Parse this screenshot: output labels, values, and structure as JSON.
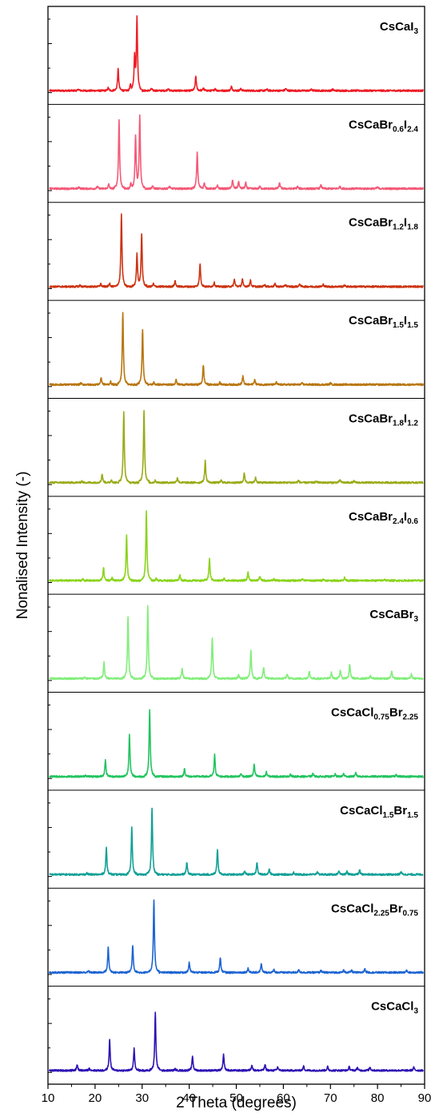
{
  "chart_data": {
    "type": "line",
    "xlabel": "2 Theta (degrees)",
    "ylabel": "Nonalised Intensity (-)",
    "xlim": [
      10,
      90
    ],
    "xticks": [
      10,
      20,
      30,
      40,
      50,
      60,
      70,
      80,
      90
    ],
    "grid": false,
    "legend": "per-panel label, top-right",
    "series": [
      {
        "label": [
          {
            "t": "CsCaI"
          },
          {
            "t": "3",
            "s": true
          }
        ],
        "color": "#ee1c25",
        "shift": 0.0,
        "peaks": [
          [
            16.5,
            0.02
          ],
          [
            22.8,
            0.04
          ],
          [
            24.9,
            0.3
          ],
          [
            27.5,
            0.08
          ],
          [
            28.4,
            0.45
          ],
          [
            28.9,
            1.0
          ],
          [
            32.0,
            0.03
          ],
          [
            35.5,
            0.03
          ],
          [
            41.4,
            0.2
          ],
          [
            43.0,
            0.04
          ],
          [
            45.5,
            0.03
          ],
          [
            49.0,
            0.06
          ],
          [
            51.0,
            0.03
          ],
          [
            56.5,
            0.02
          ],
          [
            60.5,
            0.03
          ],
          [
            66.0,
            0.02
          ],
          [
            70.5,
            0.02
          ]
        ]
      },
      {
        "label": [
          {
            "t": "CsCaBr"
          },
          {
            "t": "0.6",
            "s": true
          },
          {
            "t": "I"
          },
          {
            "t": "2.4",
            "s": true
          }
        ],
        "color": "#f35a78",
        "shift": 0.4,
        "peaks": [
          [
            16.6,
            0.02
          ],
          [
            20.5,
            0.03
          ],
          [
            22.9,
            0.06
          ],
          [
            25.1,
            0.95
          ],
          [
            27.6,
            0.07
          ],
          [
            28.6,
            0.72
          ],
          [
            29.5,
            1.0
          ],
          [
            32.2,
            0.04
          ],
          [
            35.8,
            0.03
          ],
          [
            41.7,
            0.5
          ],
          [
            43.2,
            0.08
          ],
          [
            46.0,
            0.04
          ],
          [
            49.2,
            0.12
          ],
          [
            50.5,
            0.1
          ],
          [
            52.0,
            0.08
          ],
          [
            55.0,
            0.03
          ],
          [
            59.2,
            0.08
          ],
          [
            63.0,
            0.03
          ],
          [
            68.0,
            0.05
          ],
          [
            72.0,
            0.03
          ],
          [
            80.0,
            0.02
          ]
        ]
      },
      {
        "label": [
          {
            "t": "CsCaBr"
          },
          {
            "t": "1.2",
            "s": true
          },
          {
            "t": "I"
          },
          {
            "t": "1.8",
            "s": true
          }
        ],
        "color": "#cc3311",
        "shift": 0.8,
        "peaks": [
          [
            16.8,
            0.02
          ],
          [
            21.2,
            0.04
          ],
          [
            23.1,
            0.05
          ],
          [
            25.6,
            1.0
          ],
          [
            28.9,
            0.45
          ],
          [
            29.9,
            0.72
          ],
          [
            32.4,
            0.04
          ],
          [
            37.0,
            0.08
          ],
          [
            42.3,
            0.32
          ],
          [
            45.3,
            0.06
          ],
          [
            49.6,
            0.1
          ],
          [
            51.3,
            0.1
          ],
          [
            53.0,
            0.09
          ],
          [
            56.0,
            0.03
          ],
          [
            58.2,
            0.04
          ],
          [
            60.5,
            0.03
          ],
          [
            63.5,
            0.04
          ],
          [
            68.5,
            0.03
          ],
          [
            73.0,
            0.02
          ]
        ]
      },
      {
        "label": [
          {
            "t": "CsCaBr"
          },
          {
            "t": "1.5",
            "s": true
          },
          {
            "t": "I"
          },
          {
            "t": "1.5",
            "s": true
          }
        ],
        "color": "#b8760f",
        "shift": 1.0,
        "peaks": [
          [
            17.0,
            0.02
          ],
          [
            21.3,
            0.1
          ],
          [
            23.3,
            0.04
          ],
          [
            25.9,
            1.0
          ],
          [
            30.1,
            0.77
          ],
          [
            32.5,
            0.03
          ],
          [
            37.2,
            0.07
          ],
          [
            43.0,
            0.27
          ],
          [
            46.5,
            0.03
          ],
          [
            51.4,
            0.12
          ],
          [
            53.9,
            0.07
          ],
          [
            58.5,
            0.03
          ],
          [
            64.0,
            0.02
          ],
          [
            70.0,
            0.02
          ]
        ]
      },
      {
        "label": [
          {
            "t": "CsCaBr"
          },
          {
            "t": "1.8",
            "s": true
          },
          {
            "t": "I"
          },
          {
            "t": "1.2",
            "s": true
          }
        ],
        "color": "#9aab18",
        "shift": 1.2,
        "peaks": [
          [
            17.2,
            0.02
          ],
          [
            21.5,
            0.12
          ],
          [
            23.5,
            0.04
          ],
          [
            26.1,
            0.98
          ],
          [
            30.4,
            1.0
          ],
          [
            32.8,
            0.03
          ],
          [
            37.5,
            0.07
          ],
          [
            43.4,
            0.3
          ],
          [
            46.8,
            0.03
          ],
          [
            51.7,
            0.13
          ],
          [
            54.1,
            0.07
          ],
          [
            63.2,
            0.03
          ],
          [
            67.0,
            0.02
          ],
          [
            72.0,
            0.04
          ],
          [
            75.0,
            0.02
          ]
        ]
      },
      {
        "label": [
          {
            "t": "CsCaBr"
          },
          {
            "t": "2.4",
            "s": true
          },
          {
            "t": "I"
          },
          {
            "t": "0.6",
            "s": true
          }
        ],
        "color": "#8ad41c",
        "shift": 1.6,
        "peaks": [
          [
            17.4,
            0.02
          ],
          [
            21.8,
            0.18
          ],
          [
            23.6,
            0.04
          ],
          [
            26.7,
            0.62
          ],
          [
            30.9,
            0.95
          ],
          [
            33.0,
            0.03
          ],
          [
            38.0,
            0.08
          ],
          [
            44.3,
            0.3
          ],
          [
            47.4,
            0.03
          ],
          [
            52.5,
            0.12
          ],
          [
            55.0,
            0.06
          ],
          [
            58.0,
            0.02
          ],
          [
            64.0,
            0.03
          ],
          [
            68.5,
            0.02
          ],
          [
            73.0,
            0.04
          ],
          [
            81.5,
            0.02
          ]
        ]
      },
      {
        "label": [
          {
            "t": "CsCaBr"
          },
          {
            "t": "3",
            "s": true
          }
        ],
        "color": "#82ee7a",
        "shift": 2.0,
        "peaks": [
          [
            17.8,
            0.02
          ],
          [
            21.9,
            0.22
          ],
          [
            27.0,
            0.85
          ],
          [
            31.2,
            1.0
          ],
          [
            38.5,
            0.14
          ],
          [
            44.9,
            0.57
          ],
          [
            50.5,
            0.05
          ],
          [
            53.1,
            0.38
          ],
          [
            55.8,
            0.16
          ],
          [
            60.8,
            0.06
          ],
          [
            65.5,
            0.1
          ],
          [
            70.2,
            0.08
          ],
          [
            72.1,
            0.12
          ],
          [
            74.1,
            0.2
          ],
          [
            78.5,
            0.04
          ],
          [
            83.0,
            0.11
          ],
          [
            87.2,
            0.06
          ]
        ]
      },
      {
        "label": [
          {
            "t": "CsCaCl"
          },
          {
            "t": "0.75",
            "s": true
          },
          {
            "t": "Br"
          },
          {
            "t": "2.25",
            "s": true
          }
        ],
        "color": "#22c45f",
        "shift": 2.4,
        "peaks": [
          [
            18.0,
            0.02
          ],
          [
            22.2,
            0.23
          ],
          [
            27.3,
            0.58
          ],
          [
            31.6,
            0.93
          ],
          [
            39.0,
            0.11
          ],
          [
            45.4,
            0.3
          ],
          [
            51.0,
            0.04
          ],
          [
            53.8,
            0.17
          ],
          [
            56.4,
            0.06
          ],
          [
            61.5,
            0.03
          ],
          [
            66.3,
            0.04
          ],
          [
            71.0,
            0.03
          ],
          [
            72.8,
            0.04
          ],
          [
            75.4,
            0.05
          ],
          [
            84.0,
            0.03
          ]
        ]
      },
      {
        "label": [
          {
            "t": "CsCaCl"
          },
          {
            "t": "1.5",
            "s": true
          },
          {
            "t": "Br"
          },
          {
            "t": "1.5",
            "s": true
          }
        ],
        "color": "#12a096",
        "shift": 2.8,
        "peaks": [
          [
            18.3,
            0.02
          ],
          [
            22.4,
            0.37
          ],
          [
            27.8,
            0.65
          ],
          [
            32.1,
            0.92
          ],
          [
            39.5,
            0.17
          ],
          [
            46.0,
            0.34
          ],
          [
            51.8,
            0.05
          ],
          [
            54.4,
            0.17
          ],
          [
            57.0,
            0.08
          ],
          [
            62.2,
            0.03
          ],
          [
            67.2,
            0.04
          ],
          [
            71.8,
            0.04
          ],
          [
            73.5,
            0.04
          ],
          [
            76.2,
            0.06
          ],
          [
            85.0,
            0.04
          ]
        ]
      },
      {
        "label": [
          {
            "t": "CsCaCl"
          },
          {
            "t": "2.25",
            "s": true
          },
          {
            "t": "Br"
          },
          {
            "t": "0.75",
            "s": true
          }
        ],
        "color": "#1d64d2",
        "shift": 3.2,
        "peaks": [
          [
            18.6,
            0.02
          ],
          [
            22.8,
            0.35
          ],
          [
            28.0,
            0.38
          ],
          [
            32.5,
            1.0
          ],
          [
            40.0,
            0.14
          ],
          [
            46.6,
            0.21
          ],
          [
            52.5,
            0.06
          ],
          [
            55.3,
            0.12
          ],
          [
            58.0,
            0.04
          ],
          [
            63.3,
            0.04
          ],
          [
            68.0,
            0.03
          ],
          [
            72.8,
            0.03
          ],
          [
            74.5,
            0.03
          ],
          [
            77.3,
            0.05
          ],
          [
            86.2,
            0.03
          ]
        ]
      },
      {
        "label": [
          {
            "t": "CsCaCl"
          },
          {
            "t": "3",
            "s": true
          }
        ],
        "color": "#2d14b4",
        "shift": 3.6,
        "peaks": [
          [
            16.2,
            0.08
          ],
          [
            18.8,
            0.03
          ],
          [
            23.1,
            0.42
          ],
          [
            28.3,
            0.3
          ],
          [
            32.8,
            0.8
          ],
          [
            37.0,
            0.02
          ],
          [
            40.7,
            0.2
          ],
          [
            47.3,
            0.22
          ],
          [
            53.3,
            0.08
          ],
          [
            56.1,
            0.08
          ],
          [
            58.8,
            0.05
          ],
          [
            64.3,
            0.06
          ],
          [
            69.4,
            0.05
          ],
          [
            74.0,
            0.05
          ],
          [
            75.7,
            0.04
          ],
          [
            78.4,
            0.05
          ],
          [
            87.7,
            0.04
          ]
        ]
      }
    ]
  }
}
